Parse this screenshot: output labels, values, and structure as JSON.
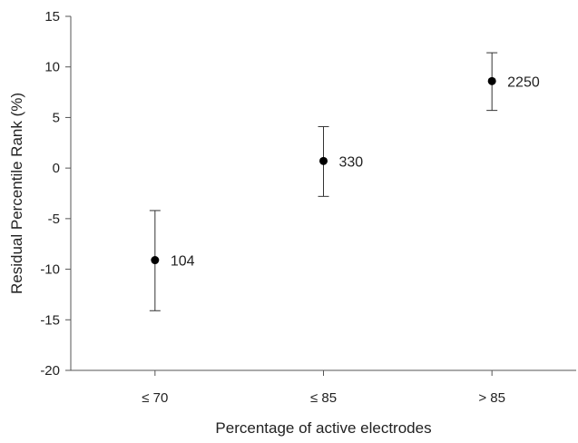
{
  "chart_data": {
    "type": "scatter",
    "title": "",
    "xlabel": "Percentage of active electrodes",
    "ylabel": "Residual Percentile Rank (%)",
    "categories": [
      "≤ 70",
      "≤ 85",
      "> 85"
    ],
    "ylim": [
      -20,
      15
    ],
    "yticks": [
      15,
      10,
      5,
      0,
      -5,
      -10,
      -15,
      -20
    ],
    "grid": false,
    "legend": "none",
    "series": [
      {
        "values": [
          -9.1,
          0.7,
          8.6
        ],
        "error_low": [
          -14.1,
          -2.8,
          5.7
        ],
        "error_high": [
          -4.2,
          4.1,
          11.4
        ],
        "labels": [
          "104",
          "330",
          "2250"
        ]
      }
    ]
  }
}
